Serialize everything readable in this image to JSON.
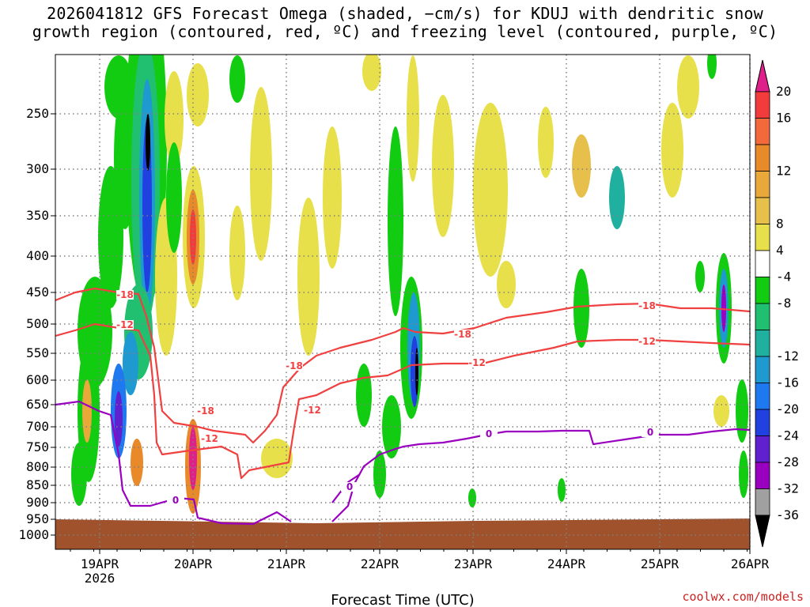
{
  "title": {
    "line1": "2026041812 GFS Forecast Omega (shaded, −cm/s) for KDUJ with dendritic snow",
    "line2": "growth region (contoured, red, ºC) and freezing level (contoured, purple, ºC)"
  },
  "credit": "coolwx.com/models",
  "colors": {
    "snow_growth_contour": "#f04040",
    "freezing_level_contour": "#9a00c0",
    "ground": "#a0522d",
    "grid": "#808080"
  },
  "chart_data": {
    "type": "heatmap",
    "xlabel": "Forecast Time (UTC)",
    "ylabel": "",
    "x_ticks": [
      "19APR",
      "20APR",
      "21APR",
      "22APR",
      "23APR",
      "24APR",
      "25APR",
      "26APR"
    ],
    "x_year_label": "2026",
    "y_ticks": [
      250,
      300,
      350,
      400,
      450,
      500,
      550,
      600,
      650,
      700,
      750,
      800,
      850,
      900,
      950,
      1000
    ],
    "y_scale": "log-pressure (inverted)",
    "grid": true,
    "colorbar": {
      "placement": "right",
      "labels": [
        20,
        16,
        12,
        8,
        4,
        -4,
        -8,
        -12,
        -16,
        -20,
        -24,
        -28,
        -32,
        -36
      ],
      "bins": [
        {
          "from": 20,
          "to": null,
          "color": "#e0208a"
        },
        {
          "from": 16,
          "to": 20,
          "color": "#f23c3c"
        },
        {
          "from": 14,
          "to": 16,
          "color": "#f26a3c"
        },
        {
          "from": 12,
          "to": 14,
          "color": "#e88a2a"
        },
        {
          "from": 10,
          "to": 12,
          "color": "#e8a83a"
        },
        {
          "from": 8,
          "to": 10,
          "color": "#e6c04a"
        },
        {
          "from": 4,
          "to": 8,
          "color": "#e8e04a"
        },
        {
          "from": -4,
          "to": 4,
          "color": "#ffffff"
        },
        {
          "from": -8,
          "to": -4,
          "color": "#11cc11"
        },
        {
          "from": -10,
          "to": -8,
          "color": "#20c070"
        },
        {
          "from": -12,
          "to": -10,
          "color": "#20b0a0"
        },
        {
          "from": -16,
          "to": -12,
          "color": "#1e9ad0"
        },
        {
          "from": -20,
          "to": -16,
          "color": "#1e78f0"
        },
        {
          "from": -24,
          "to": -20,
          "color": "#2040e0"
        },
        {
          "from": -28,
          "to": -24,
          "color": "#6020d0"
        },
        {
          "from": -32,
          "to": -28,
          "color": "#9a00c0"
        },
        {
          "from": -36,
          "to": -32,
          "color": "#a0a0a0"
        },
        {
          "from": null,
          "to": -36,
          "color": "#000000"
        }
      ]
    },
    "contours": {
      "snow_growth_labels": [
        "-18",
        "-12"
      ],
      "freezing_level_label": "0"
    }
  }
}
